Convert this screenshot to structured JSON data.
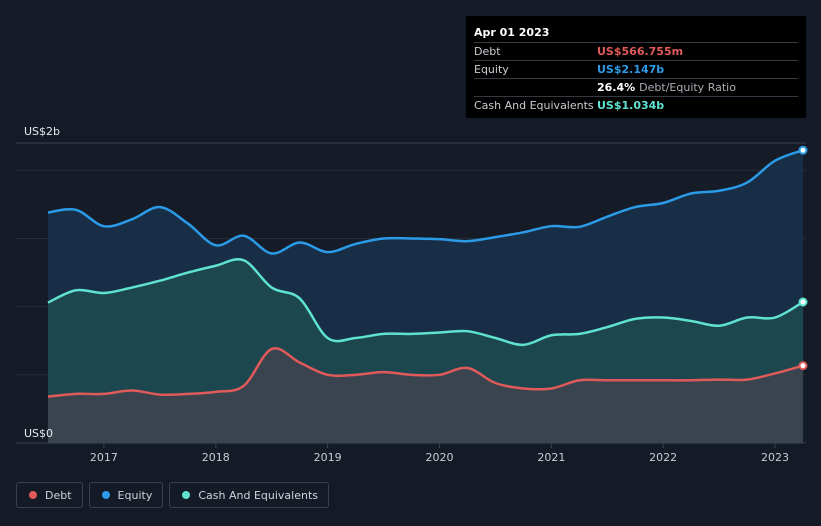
{
  "tooltip": {
    "date": "Apr 01 2023",
    "rows": [
      {
        "label": "Debt",
        "value": "US$566.755m",
        "color": "#e05a5a"
      },
      {
        "label": "Equity",
        "value": "US$2.147b",
        "color": "#2b9be8"
      },
      {
        "label": "",
        "value": "26.4%",
        "suffix": "Debt/Equity Ratio",
        "color": "#ffffff"
      },
      {
        "label": "Cash And Equivalents",
        "value": "US$1.034b",
        "color": "#5fe3d0"
      }
    ]
  },
  "legend": [
    {
      "label": "Debt",
      "color": "#e05a5a"
    },
    {
      "label": "Equity",
      "color": "#2b9be8"
    },
    {
      "label": "Cash And Equivalents",
      "color": "#5fe3d0"
    }
  ],
  "chart_data": {
    "type": "area",
    "ylim": [
      0,
      2200
    ],
    "xlim": [
      2016.5,
      2023.25
    ],
    "y_tick_labels": [
      {
        "value": 2000,
        "label": "US$2b"
      },
      {
        "value": 0,
        "label": "US$0"
      }
    ],
    "x_ticks": [
      2017,
      2018,
      2019,
      2020,
      2021,
      2022,
      2023
    ],
    "series": [
      {
        "name": "Equity",
        "color": "#2b9be8",
        "points": [
          [
            2016.5,
            1690
          ],
          [
            2016.75,
            1710
          ],
          [
            2017.0,
            1590
          ],
          [
            2017.25,
            1640
          ],
          [
            2017.5,
            1730
          ],
          [
            2017.75,
            1610
          ],
          [
            2018.0,
            1450
          ],
          [
            2018.25,
            1520
          ],
          [
            2018.5,
            1390
          ],
          [
            2018.75,
            1470
          ],
          [
            2019.0,
            1400
          ],
          [
            2019.25,
            1460
          ],
          [
            2019.5,
            1500
          ],
          [
            2019.75,
            1500
          ],
          [
            2020.0,
            1495
          ],
          [
            2020.25,
            1480
          ],
          [
            2020.5,
            1510
          ],
          [
            2020.75,
            1545
          ],
          [
            2021.0,
            1590
          ],
          [
            2021.25,
            1585
          ],
          [
            2021.5,
            1660
          ],
          [
            2021.75,
            1730
          ],
          [
            2022.0,
            1760
          ],
          [
            2022.25,
            1830
          ],
          [
            2022.5,
            1850
          ],
          [
            2022.75,
            1910
          ],
          [
            2023.0,
            2070
          ],
          [
            2023.25,
            2147
          ]
        ]
      },
      {
        "name": "Cash And Equivalents",
        "color": "#5fe3d0",
        "points": [
          [
            2016.5,
            1030
          ],
          [
            2016.75,
            1120
          ],
          [
            2017.0,
            1100
          ],
          [
            2017.25,
            1140
          ],
          [
            2017.5,
            1190
          ],
          [
            2017.75,
            1250
          ],
          [
            2018.0,
            1300
          ],
          [
            2018.25,
            1340
          ],
          [
            2018.5,
            1140
          ],
          [
            2018.75,
            1060
          ],
          [
            2019.0,
            770
          ],
          [
            2019.25,
            770
          ],
          [
            2019.5,
            800
          ],
          [
            2019.75,
            800
          ],
          [
            2020.0,
            810
          ],
          [
            2020.25,
            820
          ],
          [
            2020.5,
            770
          ],
          [
            2020.75,
            720
          ],
          [
            2021.0,
            790
          ],
          [
            2021.25,
            800
          ],
          [
            2021.5,
            850
          ],
          [
            2021.75,
            910
          ],
          [
            2022.0,
            920
          ],
          [
            2022.25,
            895
          ],
          [
            2022.5,
            860
          ],
          [
            2022.75,
            920
          ],
          [
            2023.0,
            920
          ],
          [
            2023.25,
            1034
          ]
        ]
      },
      {
        "name": "Debt",
        "color": "#e05a5a",
        "points": [
          [
            2016.5,
            340
          ],
          [
            2016.75,
            360
          ],
          [
            2017.0,
            360
          ],
          [
            2017.25,
            385
          ],
          [
            2017.5,
            355
          ],
          [
            2017.75,
            360
          ],
          [
            2018.0,
            375
          ],
          [
            2018.25,
            420
          ],
          [
            2018.5,
            690
          ],
          [
            2018.75,
            590
          ],
          [
            2019.0,
            500
          ],
          [
            2019.25,
            500
          ],
          [
            2019.5,
            520
          ],
          [
            2019.75,
            500
          ],
          [
            2020.0,
            500
          ],
          [
            2020.25,
            550
          ],
          [
            2020.5,
            440
          ],
          [
            2020.75,
            400
          ],
          [
            2021.0,
            400
          ],
          [
            2021.25,
            460
          ],
          [
            2021.5,
            460
          ],
          [
            2021.75,
            460
          ],
          [
            2022.0,
            460
          ],
          [
            2022.25,
            460
          ],
          [
            2022.5,
            465
          ],
          [
            2022.75,
            465
          ],
          [
            2023.0,
            510
          ],
          [
            2023.25,
            567
          ]
        ]
      }
    ]
  }
}
